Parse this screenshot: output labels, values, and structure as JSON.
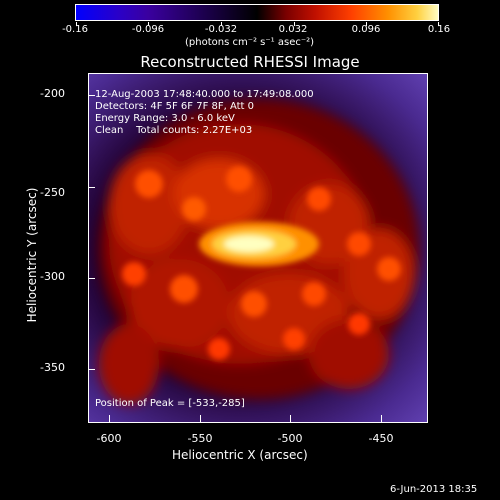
{
  "colorbar": {
    "ticks": [
      "-0.16",
      "-0.096",
      "-0.032",
      "0.032",
      "0.096",
      "0.16"
    ],
    "unit": "(photons cm⁻² s⁻¹ asec⁻²)"
  },
  "title": "Reconstructed RHESSI Image",
  "info": {
    "time": "12-Aug-2003 17:48:40.000 to 17:49:08.000",
    "detectors": "Detectors: 4F 5F 6F 7F 8F, Att 0",
    "energy": "Energy Range: 3.0 - 6.0 keV",
    "clean": "Clean    Total counts: 2.27E+03"
  },
  "peak": "Position of Peak = [-533,-285]",
  "axes": {
    "xlabel": "Heliocentric X (arcsec)",
    "ylabel": "Heliocentric Y (arcsec)",
    "xticks": [
      "-600",
      "-550",
      "-500",
      "-450"
    ],
    "yticks": [
      "-200",
      "-250",
      "-300",
      "-350"
    ]
  },
  "footer": "6-Jun-2013 18:35"
}
